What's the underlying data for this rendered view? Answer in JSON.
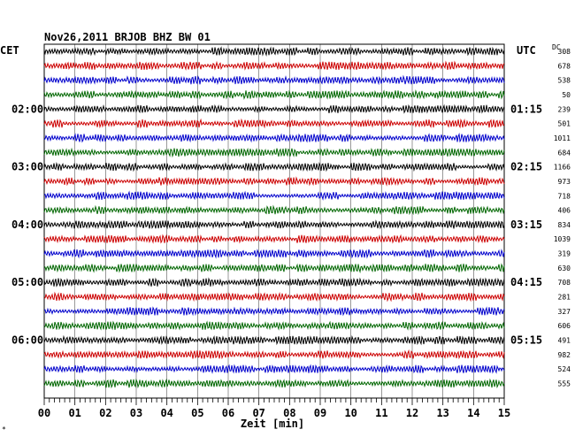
{
  "chart_data": {
    "type": "line",
    "title": "Nov26,2011   BRJOB BHZ BW 01",
    "left_timezone": "CET",
    "right_timezone": "UTC",
    "right_header": "DC",
    "xlabel": "Zeit [min]",
    "x_ticks": [
      "00",
      "01",
      "02",
      "03",
      "04",
      "05",
      "06",
      "07",
      "08",
      "09",
      "10",
      "11",
      "12",
      "13",
      "14",
      "15"
    ],
    "xlim": [
      0,
      15
    ],
    "left_hour_labels": [
      "02:00",
      "03:00",
      "04:00",
      "05:00",
      "06:00"
    ],
    "right_hour_labels": [
      "01:15",
      "02:15",
      "03:15",
      "04:15",
      "05:15"
    ],
    "trace_colors": [
      "#000000",
      "#cc0000",
      "#0000cc",
      "#006600"
    ],
    "dc_offsets": [
      308,
      678,
      538,
      50,
      239,
      501,
      1011,
      684,
      1166,
      973,
      718,
      406,
      834,
      1039,
      319,
      630,
      708,
      281,
      327,
      606,
      491,
      982,
      524,
      555
    ],
    "grid": true
  },
  "footer_mark": "*"
}
